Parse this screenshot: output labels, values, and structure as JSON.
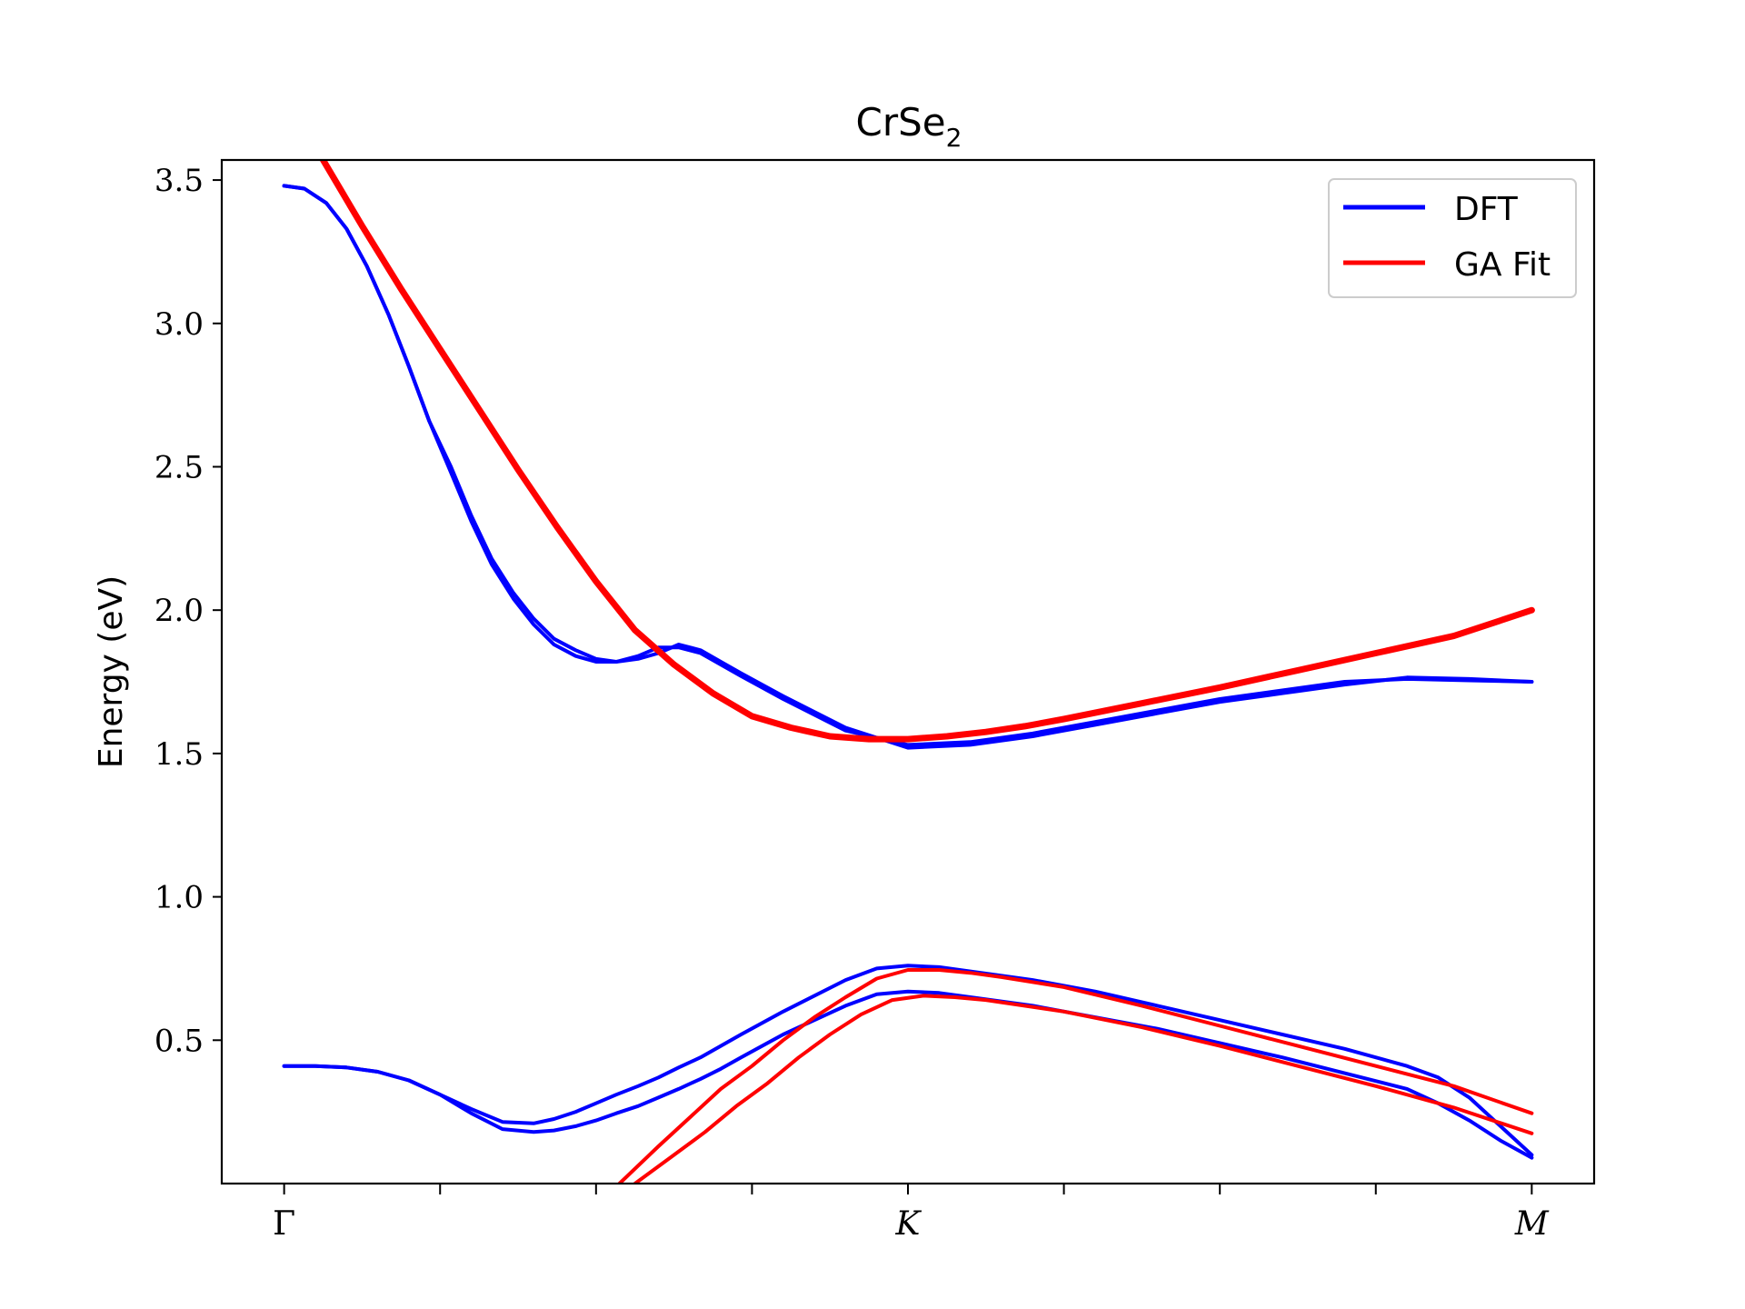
{
  "chart_data": {
    "type": "line",
    "title": "CrSe",
    "title_subscript": "2",
    "xlabel": "",
    "ylabel": "Energy (eV)",
    "ylim": [
      0.0,
      3.57
    ],
    "xlim": [
      -0.04,
      0.84
    ],
    "yticks": [
      0.5,
      1.0,
      1.5,
      2.0,
      2.5,
      3.0,
      3.5
    ],
    "ytick_labels": [
      "0.5",
      "1.0",
      "1.5",
      "2.0",
      "2.5",
      "3.0",
      "3.5"
    ],
    "xticks": [
      0,
      0.1,
      0.2,
      0.3,
      0.4,
      0.5,
      0.6,
      0.7,
      0.8
    ],
    "xtick_labels": [
      "Γ",
      "",
      "",
      "",
      "K",
      "",
      "",
      "",
      "M"
    ],
    "grid": false,
    "legend_position": "top-right",
    "legend": [
      {
        "label": "DFT",
        "color": "#0000ff"
      },
      {
        "label": "GA Fit",
        "color": "#ff0000"
      }
    ],
    "series": [
      {
        "group": "DFT",
        "color": "#0000ff",
        "width": 4,
        "x": [
          0,
          0.013,
          0.027,
          0.04,
          0.053,
          0.067,
          0.08,
          0.093,
          0.107,
          0.12,
          0.133,
          0.147,
          0.16,
          0.173,
          0.187,
          0.2,
          0.213,
          0.227,
          0.24,
          0.253,
          0.267,
          0.28,
          0.293,
          0.32,
          0.36,
          0.4,
          0.44,
          0.48,
          0.52,
          0.56,
          0.6,
          0.64,
          0.68,
          0.72,
          0.76,
          0.8
        ],
        "y": [
          3.48,
          3.47,
          3.42,
          3.33,
          3.2,
          3.03,
          2.85,
          2.66,
          2.48,
          2.31,
          2.16,
          2.04,
          1.95,
          1.88,
          1.84,
          1.82,
          1.82,
          1.84,
          1.87,
          1.87,
          1.85,
          1.81,
          1.77,
          1.69,
          1.58,
          1.53,
          1.54,
          1.57,
          1.61,
          1.65,
          1.69,
          1.72,
          1.75,
          1.76,
          1.755,
          1.75
        ]
      },
      {
        "group": "DFT",
        "color": "#0000ff",
        "width": 4,
        "x": [
          0,
          0.013,
          0.027,
          0.04,
          0.053,
          0.067,
          0.08,
          0.093,
          0.107,
          0.12,
          0.133,
          0.147,
          0.16,
          0.173,
          0.187,
          0.2,
          0.213,
          0.227,
          0.24,
          0.253,
          0.267,
          0.28,
          0.293,
          0.32,
          0.36,
          0.4,
          0.44,
          0.48,
          0.52,
          0.56,
          0.6,
          0.64,
          0.68,
          0.72,
          0.76,
          0.8
        ],
        "y": [
          3.48,
          3.47,
          3.42,
          3.33,
          3.2,
          3.03,
          2.85,
          2.66,
          2.5,
          2.33,
          2.18,
          2.06,
          1.97,
          1.9,
          1.86,
          1.83,
          1.82,
          1.83,
          1.85,
          1.88,
          1.86,
          1.82,
          1.78,
          1.7,
          1.59,
          1.52,
          1.53,
          1.56,
          1.6,
          1.64,
          1.68,
          1.71,
          1.74,
          1.765,
          1.76,
          1.75
        ]
      },
      {
        "group": "DFT",
        "color": "#0000ff",
        "width": 4,
        "x": [
          0,
          0.02,
          0.04,
          0.06,
          0.08,
          0.1,
          0.12,
          0.14,
          0.16,
          0.173,
          0.187,
          0.2,
          0.213,
          0.227,
          0.24,
          0.253,
          0.267,
          0.28,
          0.293,
          0.32,
          0.36,
          0.38,
          0.4,
          0.42,
          0.44,
          0.48,
          0.52,
          0.56,
          0.6,
          0.64,
          0.68,
          0.72,
          0.74,
          0.76,
          0.78,
          0.8
        ],
        "y": [
          0.41,
          0.41,
          0.405,
          0.39,
          0.36,
          0.31,
          0.26,
          0.215,
          0.21,
          0.225,
          0.25,
          0.28,
          0.31,
          0.34,
          0.37,
          0.405,
          0.44,
          0.48,
          0.52,
          0.6,
          0.71,
          0.75,
          0.76,
          0.755,
          0.74,
          0.71,
          0.67,
          0.62,
          0.57,
          0.52,
          0.47,
          0.41,
          0.37,
          0.3,
          0.2,
          0.1
        ]
      },
      {
        "group": "DFT",
        "color": "#0000ff",
        "width": 4,
        "x": [
          0,
          0.02,
          0.04,
          0.06,
          0.08,
          0.1,
          0.12,
          0.14,
          0.16,
          0.173,
          0.187,
          0.2,
          0.213,
          0.227,
          0.24,
          0.253,
          0.267,
          0.28,
          0.293,
          0.32,
          0.36,
          0.38,
          0.4,
          0.42,
          0.44,
          0.48,
          0.52,
          0.56,
          0.6,
          0.64,
          0.68,
          0.72,
          0.74,
          0.76,
          0.78,
          0.8
        ],
        "y": [
          0.41,
          0.41,
          0.405,
          0.39,
          0.36,
          0.31,
          0.245,
          0.19,
          0.18,
          0.185,
          0.2,
          0.22,
          0.245,
          0.27,
          0.3,
          0.33,
          0.365,
          0.4,
          0.44,
          0.52,
          0.62,
          0.66,
          0.67,
          0.665,
          0.65,
          0.62,
          0.58,
          0.54,
          0.49,
          0.44,
          0.385,
          0.33,
          0.28,
          0.22,
          0.15,
          0.09
        ]
      },
      {
        "group": "GA Fit",
        "color": "#ff0000",
        "width": 7,
        "x": [
          0.025,
          0.05,
          0.075,
          0.1,
          0.125,
          0.15,
          0.175,
          0.2,
          0.225,
          0.25,
          0.275,
          0.3,
          0.325,
          0.35,
          0.375,
          0.4,
          0.425,
          0.45,
          0.475,
          0.5,
          0.55,
          0.6,
          0.65,
          0.7,
          0.75,
          0.8
        ],
        "y": [
          3.57,
          3.34,
          3.12,
          2.91,
          2.7,
          2.49,
          2.29,
          2.1,
          1.93,
          1.81,
          1.71,
          1.63,
          1.59,
          1.56,
          1.55,
          1.55,
          1.56,
          1.575,
          1.595,
          1.62,
          1.675,
          1.73,
          1.79,
          1.85,
          1.91,
          2.0
        ]
      },
      {
        "group": "GA Fit",
        "color": "#ff0000",
        "width": 4,
        "x": [
          0.215,
          0.24,
          0.26,
          0.28,
          0.3,
          0.32,
          0.34,
          0.36,
          0.38,
          0.4,
          0.42,
          0.44,
          0.46,
          0.5,
          0.55,
          0.6,
          0.65,
          0.7,
          0.75,
          0.8
        ],
        "y": [
          0.0,
          0.13,
          0.23,
          0.33,
          0.41,
          0.5,
          0.58,
          0.65,
          0.715,
          0.745,
          0.745,
          0.735,
          0.72,
          0.685,
          0.62,
          0.55,
          0.48,
          0.41,
          0.34,
          0.245
        ]
      },
      {
        "group": "GA Fit",
        "color": "#ff0000",
        "width": 4,
        "x": [
          0.225,
          0.25,
          0.27,
          0.29,
          0.31,
          0.33,
          0.35,
          0.37,
          0.39,
          0.41,
          0.43,
          0.45,
          0.5,
          0.55,
          0.6,
          0.65,
          0.7,
          0.75,
          0.8
        ],
        "y": [
          0.0,
          0.1,
          0.18,
          0.27,
          0.35,
          0.44,
          0.52,
          0.59,
          0.64,
          0.655,
          0.65,
          0.64,
          0.6,
          0.545,
          0.48,
          0.41,
          0.34,
          0.265,
          0.175
        ]
      }
    ]
  }
}
